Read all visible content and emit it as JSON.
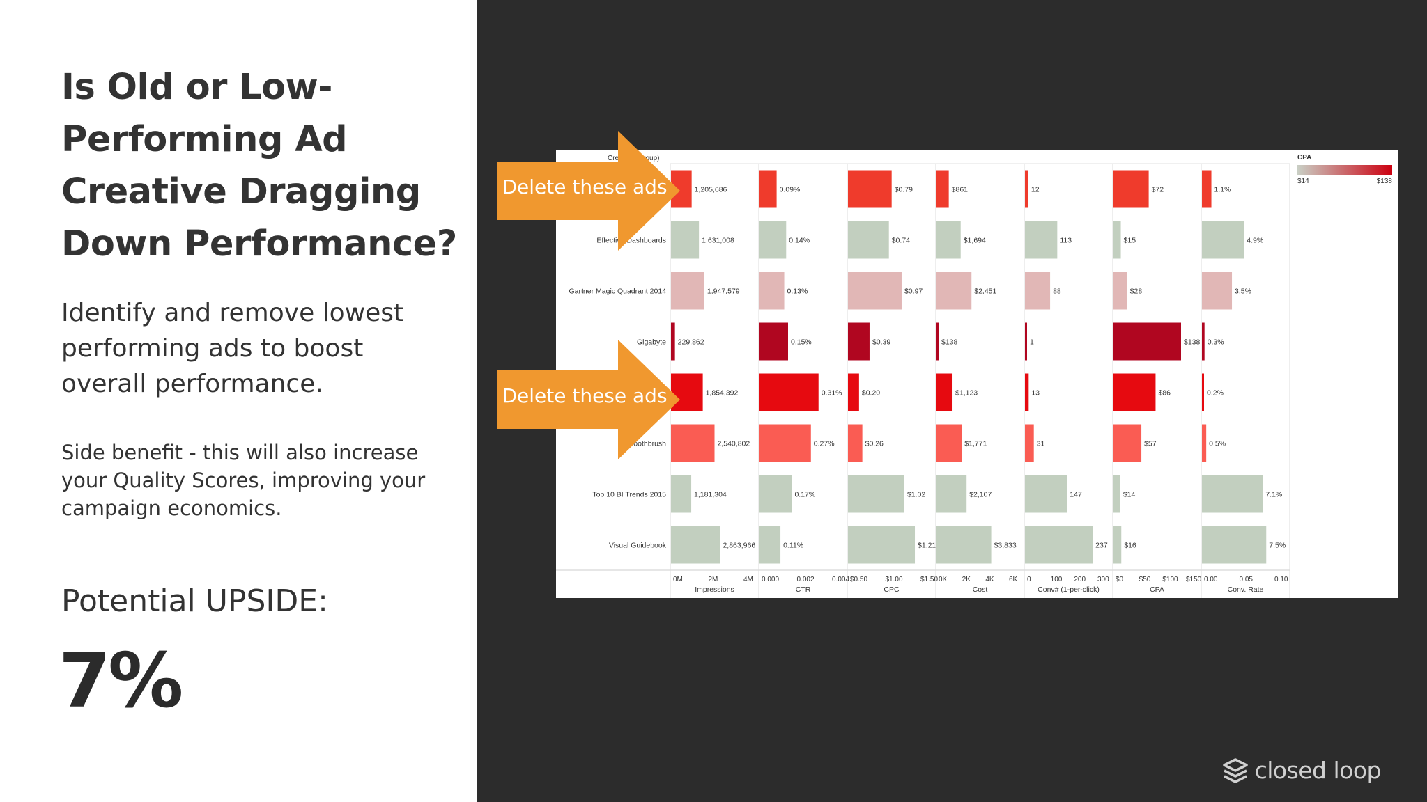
{
  "slide": {
    "title": "Is Old or Low-Performing Ad Creative Dragging Down Performance?",
    "subtitle": "Identify and remove lowest performing ads to boost overall performance.",
    "side_note": "Side benefit - this will also increase your Quality Scores, improving your campaign economics.",
    "upside_label": "Potential UPSIDE:",
    "upside_value": "7%",
    "logo_text": "closed loop",
    "logo_icon": "closed-loop-logo-icon"
  },
  "callouts": [
    {
      "label": "Delete these ads",
      "color": "#f0982f"
    },
    {
      "label": "Delete these ads",
      "color": "#f0982f"
    }
  ],
  "chart_data": {
    "type": "bar",
    "row_header": "Creative (Group)",
    "categories": [
      "",
      "Effective Dashboards",
      "Gartner Magic Quadrant 2014",
      "Gigabyte",
      "",
      "Toothbrush",
      "Top 10 BI Trends 2015",
      "Visual Guidebook"
    ],
    "measures": [
      {
        "name": "Impressions",
        "ticks": [
          "0M",
          "2M",
          "4M"
        ],
        "range": [
          0,
          5000000
        ],
        "values": [
          1205686,
          1631008,
          1947579,
          229862,
          1854392,
          2540802,
          1181304,
          2863966
        ],
        "labels": [
          "1,205,686",
          "1,631,008",
          "1,947,579",
          "229,862",
          "1,854,392",
          "2,540,802",
          "1,181,304",
          "2,863,966"
        ]
      },
      {
        "name": "CTR",
        "ticks": [
          "0.000",
          "0.002",
          "0.004"
        ],
        "range": [
          0,
          0.0045
        ],
        "values": [
          0.0009,
          0.0014,
          0.0013,
          0.0015,
          0.0031,
          0.0027,
          0.0017,
          0.0011
        ],
        "labels": [
          "0.09%",
          "0.14%",
          "0.13%",
          "0.15%",
          "0.31%",
          "0.27%",
          "0.17%",
          "0.11%"
        ]
      },
      {
        "name": "CPC",
        "ticks": [
          "$0.50",
          "$1.00",
          "$1.50"
        ],
        "range": [
          0,
          1.55
        ],
        "values": [
          0.79,
          0.74,
          0.97,
          0.39,
          0.2,
          0.26,
          1.02,
          1.21
        ],
        "labels": [
          "$0.79",
          "$0.74",
          "$0.97",
          "$0.39",
          "$0.20",
          "$0.26",
          "$1.02",
          "$1.21"
        ]
      },
      {
        "name": "Cost",
        "ticks": [
          "0K",
          "2K",
          "4K",
          "6K"
        ],
        "range": [
          0,
          6000
        ],
        "values": [
          861,
          1694,
          2451,
          138,
          1123,
          1771,
          2107,
          3833
        ],
        "labels": [
          "$861",
          "$1,694",
          "$2,451",
          "$138",
          "$1,123",
          "$1,771",
          "$2,107",
          "$3,833"
        ]
      },
      {
        "name": "Conv# (1-per-click)",
        "ticks": [
          "0",
          "100",
          "200",
          "300"
        ],
        "range": [
          0,
          300
        ],
        "values": [
          12,
          113,
          88,
          1,
          13,
          31,
          147,
          237
        ],
        "labels": [
          "12",
          "113",
          "88",
          "1",
          "13",
          "31",
          "147",
          "237"
        ]
      },
      {
        "name": "CPA",
        "ticks": [
          "$0",
          "$50",
          "$100",
          "$150"
        ],
        "range": [
          0,
          175
        ],
        "values": [
          72,
          15,
          28,
          138,
          86,
          57,
          14,
          16
        ],
        "labels": [
          "$72",
          "$15",
          "$28",
          "$138",
          "$86",
          "$57",
          "$14",
          "$16"
        ]
      },
      {
        "name": "Conv. Rate",
        "ticks": [
          "0.00",
          "0.05",
          "0.10"
        ],
        "range": [
          0,
          0.1
        ],
        "values": [
          0.011,
          0.049,
          0.035,
          0.003,
          0.002,
          0.005,
          0.071,
          0.075
        ],
        "labels": [
          "1.1%",
          "4.9%",
          "3.5%",
          "0.3%",
          "0.2%",
          "0.5%",
          "7.1%",
          "7.5%"
        ]
      }
    ],
    "row_colors": [
      "#ef3b2c",
      "#c2cfbf",
      "#e1b7b6",
      "#b00620",
      "#e60a10",
      "#fa5c53",
      "#c2cfbf",
      "#c2cfbf"
    ],
    "legend": {
      "title": "CPA",
      "min_label": "$14",
      "max_label": "$138",
      "min_color": "#c9cfc5",
      "max_color": "#cc0010",
      "placement": "top-right"
    },
    "grid": false
  }
}
